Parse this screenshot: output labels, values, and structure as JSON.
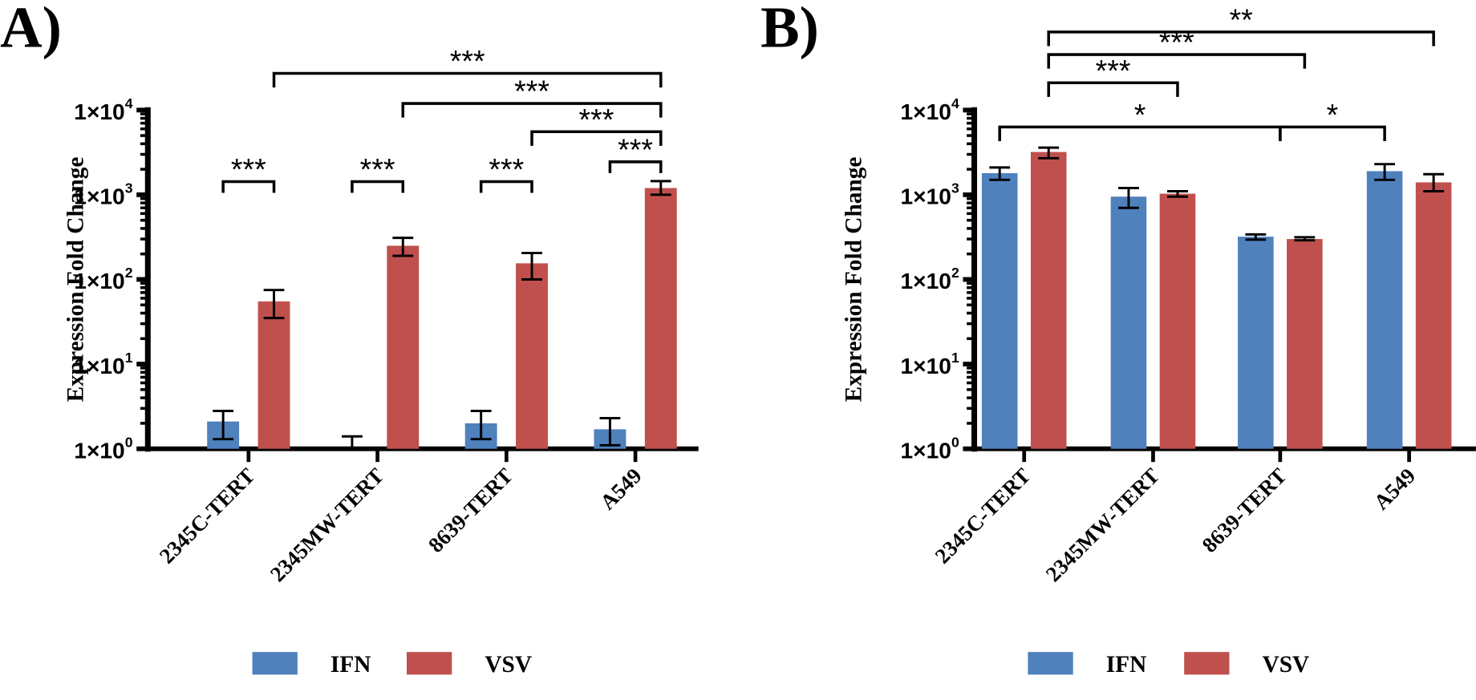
{
  "chart_data": [
    {
      "panel_label": "A)",
      "type": "bar",
      "scale": "log",
      "ylabel": "Expression Fold Change",
      "ylim": [
        1,
        10000
      ],
      "yticks": [
        {
          "base": "1×10",
          "exp": "0"
        },
        {
          "base": "1×10",
          "exp": "1"
        },
        {
          "base": "1×10",
          "exp": "2"
        },
        {
          "base": "1×10",
          "exp": "3"
        },
        {
          "base": "1×10",
          "exp": "4"
        }
      ],
      "categories": [
        "2345C-TERT",
        "2345MW-TERT",
        "8639-TERT",
        "A549"
      ],
      "series": [
        {
          "name": "IFN",
          "color": "#4f81bd",
          "values": [
            2.1,
            1.0,
            2.0,
            1.7
          ],
          "err_low": [
            1.3,
            1.0,
            1.3,
            1.1
          ],
          "err_high": [
            2.8,
            1.4,
            2.8,
            2.3
          ]
        },
        {
          "name": "VSV",
          "color": "#c0504d",
          "values": [
            55,
            250,
            155,
            1200
          ],
          "err_low": [
            35,
            190,
            100,
            1000
          ],
          "err_high": [
            75,
            310,
            205,
            1450
          ]
        }
      ],
      "significance": [
        {
          "from": [
            0,
            0
          ],
          "to": [
            0,
            1
          ],
          "label": "***"
        },
        {
          "from": [
            1,
            0
          ],
          "to": [
            1,
            1
          ],
          "label": "***"
        },
        {
          "from": [
            2,
            0
          ],
          "to": [
            2,
            1
          ],
          "label": "***"
        },
        {
          "from": [
            3,
            0
          ],
          "to": [
            3,
            1
          ],
          "label": "***"
        },
        {
          "from": [
            2,
            1
          ],
          "to": [
            3,
            1
          ],
          "label": "***"
        },
        {
          "from": [
            1,
            1
          ],
          "to": [
            3,
            1
          ],
          "label": "***"
        },
        {
          "from": [
            0,
            1
          ],
          "to": [
            3,
            1
          ],
          "label": "***"
        }
      ],
      "legend": [
        "IFN",
        "VSV"
      ],
      "legend_position": "bottom"
    },
    {
      "panel_label": "B)",
      "type": "bar",
      "scale": "log",
      "ylabel": "Expression Fold Change",
      "ylim": [
        1,
        10000
      ],
      "yticks": [
        {
          "base": "1×10",
          "exp": "0"
        },
        {
          "base": "1×10",
          "exp": "1"
        },
        {
          "base": "1×10",
          "exp": "2"
        },
        {
          "base": "1×10",
          "exp": "3"
        },
        {
          "base": "1×10",
          "exp": "4"
        }
      ],
      "categories": [
        "2345C-TERT",
        "2345MW-TERT",
        "8639-TERT",
        "A549"
      ],
      "series": [
        {
          "name": "IFN",
          "color": "#4f81bd",
          "values": [
            1800,
            950,
            320,
            1900
          ],
          "err_low": [
            1500,
            700,
            295,
            1500
          ],
          "err_high": [
            2100,
            1200,
            340,
            2300
          ]
        },
        {
          "name": "VSV",
          "color": "#c0504d",
          "values": [
            3200,
            1030,
            300,
            1400
          ],
          "err_low": [
            2700,
            950,
            290,
            1100
          ],
          "err_high": [
            3600,
            1100,
            315,
            1750
          ]
        }
      ],
      "significance": [
        {
          "from": [
            0,
            0
          ],
          "to": [
            2,
            "group"
          ],
          "label": "*"
        },
        {
          "from": [
            2,
            "group"
          ],
          "to": [
            3,
            0
          ],
          "label": "*"
        },
        {
          "from": [
            0,
            1
          ],
          "to": [
            1,
            1
          ],
          "label": "***"
        },
        {
          "from": [
            0,
            1
          ],
          "to": [
            2,
            1
          ],
          "label": "***"
        },
        {
          "from": [
            0,
            1
          ],
          "to": [
            3,
            1
          ],
          "label": "**"
        }
      ],
      "legend": [
        "IFN",
        "VSV"
      ],
      "legend_position": "bottom"
    }
  ]
}
